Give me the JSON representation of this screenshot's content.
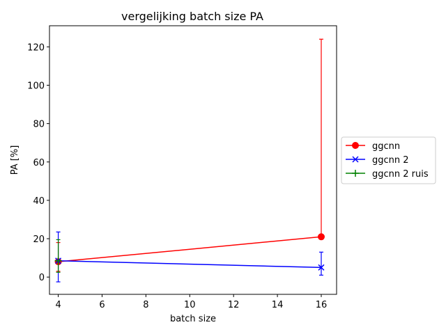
{
  "chart_data": {
    "type": "line",
    "title": "vergelijking batch size PA",
    "xlabel": "batch size",
    "ylabel": "PA [%]",
    "xlim": [
      3.6,
      16.7
    ],
    "ylim": [
      -9,
      131
    ],
    "xticks": [
      4,
      6,
      8,
      10,
      12,
      14,
      16
    ],
    "yticks": [
      0,
      20,
      40,
      60,
      80,
      100,
      120
    ],
    "grid": false,
    "legend_position": "center-right-outside",
    "series": [
      {
        "name": "ggcnn",
        "color": "#ff0000",
        "marker": "circle",
        "x": [
          4,
          16
        ],
        "y": [
          8,
          21
        ],
        "err_low": [
          3,
          21
        ],
        "err_high": [
          18,
          124
        ]
      },
      {
        "name": "ggcnn 2",
        "color": "#0000ff",
        "marker": "x",
        "x": [
          4,
          16
        ],
        "y": [
          8.5,
          5
        ],
        "err_low": [
          -2.5,
          1
        ],
        "err_high": [
          23.5,
          13
        ]
      },
      {
        "name": "ggcnn 2 ruis",
        "color": "#008000",
        "marker": "plus",
        "x": [
          4
        ],
        "y": [
          8.5
        ],
        "err_low": [
          2.5
        ],
        "err_high": [
          19.5
        ]
      }
    ]
  }
}
